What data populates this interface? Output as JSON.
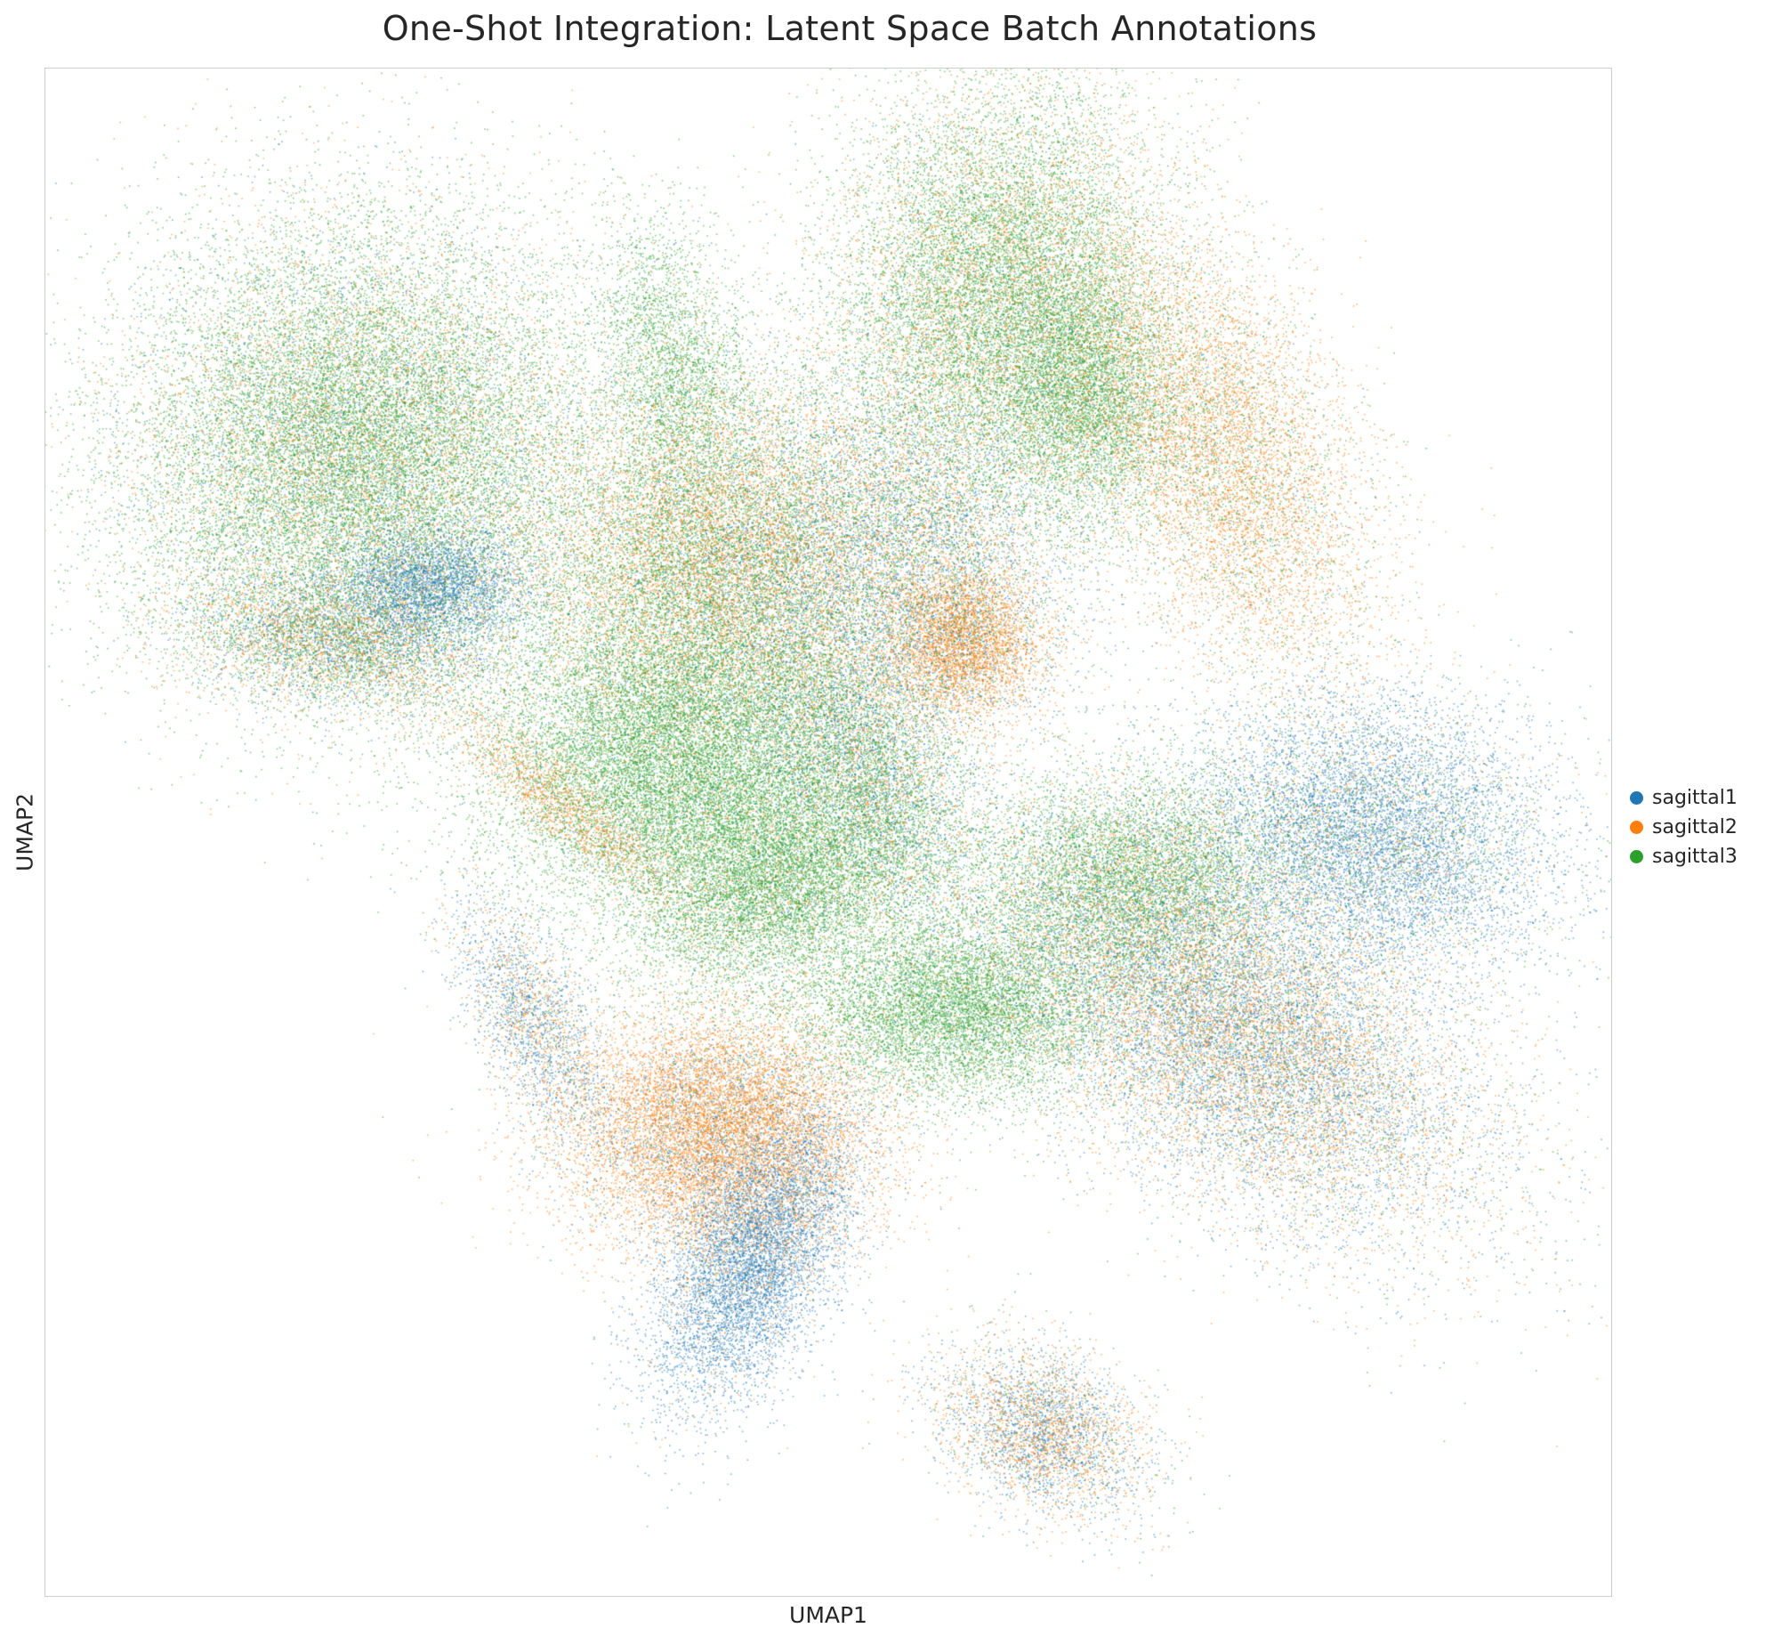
{
  "chart_data": {
    "type": "scatter",
    "title": "One-Shot Integration: Latent Space Batch Annotations",
    "xlabel": "UMAP1",
    "ylabel": "UMAP2",
    "grid": false,
    "legend_placement": "right",
    "xlim": [
      0,
      100
    ],
    "ylim": [
      0,
      100
    ],
    "series": [
      {
        "name": "sagittal1",
        "color": "#1f77b4"
      },
      {
        "name": "sagittal2",
        "color": "#ff7f0e"
      },
      {
        "name": "sagittal3",
        "color": "#2ca02c"
      }
    ],
    "clusters": [
      {
        "cx": 20.0,
        "cy": 75.0,
        "sx": 7.5,
        "sy": 7.5,
        "angle": 0,
        "n": 26000,
        "mix": [
          0.12,
          0.2,
          0.68
        ]
      },
      {
        "cx": 24.5,
        "cy": 66.0,
        "sx": 3.0,
        "sy": 2.0,
        "angle": 0,
        "n": 3500,
        "mix": [
          0.9,
          0.05,
          0.05
        ]
      },
      {
        "cx": 18.0,
        "cy": 62.5,
        "sx": 5.0,
        "sy": 2.0,
        "angle": -10,
        "n": 4500,
        "mix": [
          0.3,
          0.35,
          0.35
        ]
      },
      {
        "cx": 60.0,
        "cy": 86.0,
        "sx": 5.0,
        "sy": 7.0,
        "angle": -15,
        "n": 14000,
        "mix": [
          0.05,
          0.25,
          0.7
        ]
      },
      {
        "cx": 66.0,
        "cy": 79.0,
        "sx": 3.0,
        "sy": 4.5,
        "angle": 0,
        "n": 6000,
        "mix": [
          0.05,
          0.1,
          0.85
        ]
      },
      {
        "cx": 75.0,
        "cy": 75.0,
        "sx": 4.0,
        "sy": 8.0,
        "angle": 25,
        "n": 9000,
        "mix": [
          0.05,
          0.7,
          0.25
        ]
      },
      {
        "cx": 42.0,
        "cy": 68.0,
        "sx": 5.5,
        "sy": 6.0,
        "angle": -20,
        "n": 14000,
        "mix": [
          0.08,
          0.45,
          0.47
        ]
      },
      {
        "cx": 40.0,
        "cy": 55.0,
        "sx": 6.0,
        "sy": 5.0,
        "angle": 0,
        "n": 15000,
        "mix": [
          0.04,
          0.06,
          0.9
        ]
      },
      {
        "cx": 47.0,
        "cy": 47.0,
        "sx": 5.0,
        "sy": 3.5,
        "angle": 20,
        "n": 9000,
        "mix": [
          0.05,
          0.1,
          0.85
        ]
      },
      {
        "cx": 58.5,
        "cy": 62.5,
        "sx": 2.5,
        "sy": 2.5,
        "angle": 0,
        "n": 4000,
        "mix": [
          0.05,
          0.9,
          0.05
        ]
      },
      {
        "cx": 54.0,
        "cy": 68.0,
        "sx": 6.0,
        "sy": 6.0,
        "angle": 40,
        "n": 10000,
        "mix": [
          0.4,
          0.3,
          0.3
        ]
      },
      {
        "cx": 58.0,
        "cy": 38.5,
        "sx": 5.0,
        "sy": 3.0,
        "angle": 0,
        "n": 8000,
        "mix": [
          0.04,
          0.04,
          0.92
        ]
      },
      {
        "cx": 69.0,
        "cy": 47.0,
        "sx": 5.0,
        "sy": 3.5,
        "angle": 0,
        "n": 7000,
        "mix": [
          0.05,
          0.1,
          0.85
        ]
      },
      {
        "cx": 76.0,
        "cy": 37.0,
        "sx": 9.0,
        "sy": 5.0,
        "angle": -35,
        "n": 18000,
        "mix": [
          0.45,
          0.4,
          0.15
        ]
      },
      {
        "cx": 84.5,
        "cy": 50.0,
        "sx": 6.0,
        "sy": 4.5,
        "angle": -15,
        "n": 10000,
        "mix": [
          0.75,
          0.1,
          0.15
        ]
      },
      {
        "cx": 43.0,
        "cy": 30.5,
        "sx": 5.0,
        "sy": 4.0,
        "angle": 0,
        "n": 12000,
        "mix": [
          0.15,
          0.8,
          0.05
        ]
      },
      {
        "cx": 45.0,
        "cy": 22.0,
        "sx": 2.5,
        "sy": 5.0,
        "angle": -25,
        "n": 7000,
        "mix": [
          0.9,
          0.08,
          0.02
        ]
      },
      {
        "cx": 63.5,
        "cy": 11.0,
        "sx": 3.5,
        "sy": 2.5,
        "angle": -30,
        "n": 4000,
        "mix": [
          0.45,
          0.45,
          0.1
        ]
      },
      {
        "cx": 31.0,
        "cy": 38.0,
        "sx": 1.8,
        "sy": 4.5,
        "angle": 25,
        "n": 2500,
        "mix": [
          0.6,
          0.3,
          0.1
        ]
      },
      {
        "cx": 33.0,
        "cy": 52.0,
        "sx": 1.2,
        "sy": 5.0,
        "angle": 50,
        "n": 1500,
        "mix": [
          0.05,
          0.85,
          0.1
        ]
      },
      {
        "cx": 40.0,
        "cy": 81.0,
        "sx": 2.5,
        "sy": 5.0,
        "angle": 15,
        "n": 3000,
        "mix": [
          0.05,
          0.05,
          0.9
        ]
      },
      {
        "cx": 52.0,
        "cy": 55.0,
        "sx": 3.0,
        "sy": 6.0,
        "angle": 30,
        "n": 6000,
        "mix": [
          0.3,
          0.2,
          0.5
        ]
      }
    ]
  }
}
